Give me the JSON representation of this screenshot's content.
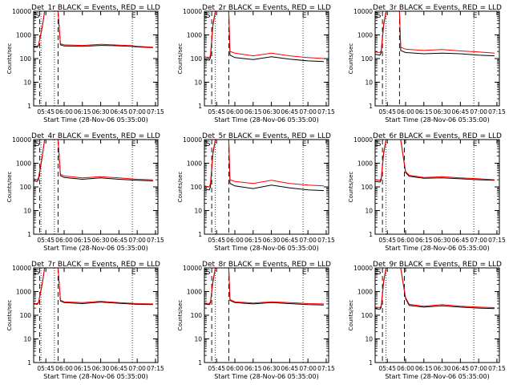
{
  "chart_data": [
    {
      "type": "line",
      "title": "Det_1r BLACK = Events, RED = LLD",
      "xlabel": "Start Time (28-Nov-06 05:35:00)",
      "ylabel": "Counts/sec",
      "yscale": "log",
      "ylim": [
        1,
        10000
      ],
      "x_ticks": [
        "05:45",
        "06:00",
        "06:15",
        "06:30",
        "06:45",
        "07:00",
        "07:15"
      ],
      "y_ticks": [
        "1",
        "10",
        "100",
        "1000",
        "10000"
      ],
      "markers": [
        {
          "x": "05:36",
          "label": "E"
        },
        {
          "x": "05:38",
          "label": "S"
        },
        {
          "x": "06:57",
          "label": "E"
        }
      ],
      "dotted_lines": [
        "05:41",
        "05:52",
        "06:56"
      ],
      "dashed_lines": [
        "05:40",
        "05:55"
      ],
      "series": [
        {
          "color": "#000000",
          "x": [
            "05:35",
            "05:38",
            "05:39",
            "05:42",
            "05:44",
            "05:55",
            "05:57",
            "06:00",
            "06:15",
            "06:30",
            "06:40",
            "06:55",
            "07:00",
            "07:13"
          ],
          "y": [
            320,
            300,
            360,
            2000,
            10000,
            10000,
            380,
            340,
            330,
            360,
            350,
            330,
            310,
            290
          ]
        },
        {
          "color": "#ff0000",
          "x": [
            "05:35",
            "05:38",
            "05:39",
            "05:42",
            "05:44",
            "05:55",
            "05:57",
            "06:00",
            "06:15",
            "06:30",
            "06:40",
            "06:55",
            "07:00",
            "07:13"
          ],
          "y": [
            340,
            330,
            380,
            2200,
            10000,
            10000,
            420,
            380,
            360,
            400,
            380,
            350,
            330,
            300
          ]
        }
      ]
    },
    {
      "type": "line",
      "title": "Det_2r BLACK = Events, RED = LLD",
      "xlabel": "Start Time (28-Nov-06 05:35:00)",
      "ylabel": "Counts/sec",
      "yscale": "log",
      "ylim": [
        1,
        10000
      ],
      "x_ticks": [
        "05:45",
        "06:00",
        "06:15",
        "06:30",
        "06:45",
        "07:00",
        "07:15"
      ],
      "y_ticks": [
        "1",
        "10",
        "100",
        "1000",
        "10000"
      ],
      "markers": [
        {
          "x": "05:36",
          "label": "E"
        },
        {
          "x": "05:38",
          "label": "S"
        },
        {
          "x": "06:57",
          "label": "E"
        }
      ],
      "dotted_lines": [
        "05:44",
        "06:56"
      ],
      "dashed_lines": [
        "05:41",
        "05:55"
      ],
      "series": [
        {
          "color": "#000000",
          "x": [
            "05:35",
            "05:39",
            "05:40",
            "05:42",
            "05:44",
            "05:55",
            "05:56",
            "06:00",
            "06:15",
            "06:30",
            "06:45",
            "07:00",
            "07:13"
          ],
          "y": [
            90,
            85,
            110,
            2500,
            10000,
            10000,
            140,
            110,
            90,
            120,
            95,
            80,
            75
          ]
        },
        {
          "color": "#ff0000",
          "x": [
            "05:35",
            "05:39",
            "05:40",
            "05:42",
            "05:44",
            "05:55",
            "05:56",
            "06:00",
            "06:15",
            "06:30",
            "06:45",
            "07:00",
            "07:13"
          ],
          "y": [
            120,
            110,
            140,
            3000,
            10000,
            10000,
            200,
            170,
            130,
            170,
            130,
            110,
            100
          ]
        }
      ]
    },
    {
      "type": "line",
      "title": "Det_3r BLACK = Events, RED = LLD",
      "xlabel": "Start Time (28-Nov-06 05:35:00)",
      "ylabel": "Counts/sec",
      "yscale": "log",
      "ylim": [
        1,
        10000
      ],
      "x_ticks": [
        "05:45",
        "06:00",
        "06:15",
        "06:30",
        "06:45",
        "07:00",
        "07:15"
      ],
      "y_ticks": [
        "1",
        "10",
        "100",
        "1000",
        "10000"
      ],
      "markers": [
        {
          "x": "05:36",
          "label": "E"
        },
        {
          "x": "05:38",
          "label": "S"
        },
        {
          "x": "06:57",
          "label": "E"
        }
      ],
      "dotted_lines": [
        "05:44",
        "06:56"
      ],
      "dashed_lines": [
        "05:41",
        "05:55"
      ],
      "series": [
        {
          "color": "#000000",
          "x": [
            "05:35",
            "05:39",
            "05:40",
            "05:42",
            "05:44",
            "05:55",
            "05:56",
            "06:00",
            "06:15",
            "06:30",
            "06:45",
            "07:00",
            "07:13"
          ],
          "y": [
            150,
            140,
            180,
            2500,
            10000,
            10000,
            220,
            180,
            160,
            170,
            160,
            140,
            130
          ]
        },
        {
          "color": "#ff0000",
          "x": [
            "05:35",
            "05:39",
            "05:40",
            "05:42",
            "05:44",
            "05:55",
            "05:56",
            "06:00",
            "06:15",
            "06:30",
            "06:45",
            "07:00",
            "07:13"
          ],
          "y": [
            190,
            180,
            220,
            3000,
            10000,
            10000,
            300,
            250,
            220,
            240,
            210,
            190,
            170
          ]
        }
      ]
    },
    {
      "type": "line",
      "title": "Det_4r BLACK = Events, RED = LLD",
      "xlabel": "Start Time (28-Nov-06 05:35:00)",
      "ylabel": "Counts/sec",
      "yscale": "log",
      "ylim": [
        1,
        10000
      ],
      "x_ticks": [
        "05:45",
        "06:00",
        "06:15",
        "06:30",
        "06:45",
        "07:00",
        "07:15"
      ],
      "y_ticks": [
        "1",
        "10",
        "100",
        "1000",
        "10000"
      ],
      "markers": [
        {
          "x": "05:36",
          "label": "E"
        },
        {
          "x": "05:38",
          "label": "S"
        },
        {
          "x": "06:57",
          "label": "E"
        }
      ],
      "dotted_lines": [
        "05:41",
        "05:52",
        "06:56"
      ],
      "dashed_lines": [
        "05:40",
        "05:55"
      ],
      "series": [
        {
          "color": "#000000",
          "x": [
            "05:35",
            "05:38",
            "05:39",
            "05:42",
            "05:44",
            "05:55",
            "05:57",
            "06:00",
            "06:15",
            "06:30",
            "06:45",
            "07:00",
            "07:13"
          ],
          "y": [
            180,
            170,
            210,
            1800,
            10000,
            10000,
            300,
            250,
            210,
            240,
            210,
            190,
            180
          ]
        },
        {
          "color": "#ff0000",
          "x": [
            "05:35",
            "05:38",
            "05:39",
            "05:42",
            "05:44",
            "05:55",
            "05:57",
            "06:00",
            "06:15",
            "06:30",
            "06:45",
            "07:00",
            "07:13"
          ],
          "y": [
            220,
            200,
            250,
            2000,
            10000,
            10000,
            340,
            290,
            240,
            270,
            240,
            210,
            200
          ]
        }
      ]
    },
    {
      "type": "line",
      "title": "Det_5r BLACK = Events, RED = LLD",
      "xlabel": "Start Time (28-Nov-06 05:35:00)",
      "ylabel": "Counts/sec",
      "yscale": "log",
      "ylim": [
        1,
        10000
      ],
      "x_ticks": [
        "05:45",
        "06:00",
        "06:15",
        "06:30",
        "06:45",
        "07:00",
        "07:15"
      ],
      "y_ticks": [
        "1",
        "10",
        "100",
        "1000",
        "10000"
      ],
      "markers": [
        {
          "x": "05:36",
          "label": "E"
        },
        {
          "x": "05:38",
          "label": "S"
        },
        {
          "x": "06:57",
          "label": "E"
        }
      ],
      "dotted_lines": [
        "05:44",
        "06:56"
      ],
      "dashed_lines": [
        "05:41",
        "05:55"
      ],
      "series": [
        {
          "color": "#000000",
          "x": [
            "05:35",
            "05:39",
            "05:40",
            "05:42",
            "05:44",
            "05:55",
            "05:56",
            "06:00",
            "06:15",
            "06:30",
            "06:45",
            "07:00",
            "07:13"
          ],
          "y": [
            80,
            75,
            100,
            2500,
            10000,
            10000,
            140,
            110,
            85,
            120,
            90,
            75,
            70
          ]
        },
        {
          "color": "#ff0000",
          "x": [
            "05:35",
            "05:39",
            "05:40",
            "05:42",
            "05:44",
            "05:55",
            "05:56",
            "06:00",
            "06:15",
            "06:30",
            "06:45",
            "07:00",
            "07:13"
          ],
          "y": [
            110,
            100,
            140,
            3000,
            10000,
            10000,
            200,
            170,
            140,
            190,
            140,
            120,
            110
          ]
        }
      ]
    },
    {
      "type": "line",
      "title": "Det_6r BLACK = Events, RED = LLD",
      "xlabel": "Start Time (28-Nov-06 05:35:00)",
      "ylabel": "Counts/sec",
      "yscale": "log",
      "ylim": [
        1,
        10000
      ],
      "x_ticks": [
        "05:45",
        "06:00",
        "06:15",
        "06:30",
        "06:45",
        "07:00",
        "07:15"
      ],
      "y_ticks": [
        "1",
        "10",
        "100",
        "1000",
        "10000"
      ],
      "markers": [
        {
          "x": "05:36",
          "label": "E"
        },
        {
          "x": "05:38",
          "label": "S"
        },
        {
          "x": "06:57",
          "label": "E"
        }
      ],
      "dotted_lines": [
        "05:44",
        "06:56"
      ],
      "dashed_lines": [
        "05:41",
        "05:59"
      ],
      "series": [
        {
          "color": "#000000",
          "x": [
            "05:35",
            "05:39",
            "05:40",
            "05:42",
            "05:44",
            "05:56",
            "06:00",
            "06:03",
            "06:15",
            "06:30",
            "06:45",
            "07:00",
            "07:13"
          ],
          "y": [
            170,
            160,
            200,
            2500,
            10000,
            10000,
            400,
            280,
            230,
            240,
            220,
            200,
            190
          ]
        },
        {
          "color": "#ff0000",
          "x": [
            "05:35",
            "05:39",
            "05:40",
            "05:42",
            "05:44",
            "05:56",
            "06:00",
            "06:03",
            "06:15",
            "06:30",
            "06:45",
            "07:00",
            "07:13"
          ],
          "y": [
            200,
            190,
            230,
            3000,
            10000,
            10000,
            450,
            310,
            250,
            270,
            240,
            220,
            200
          ]
        }
      ]
    },
    {
      "type": "line",
      "title": "Det_7r BLACK = Events, RED = LLD",
      "xlabel": "Start Time (28-Nov-06 05:35:00)",
      "ylabel": "Counts/sec",
      "yscale": "log",
      "ylim": [
        1,
        10000
      ],
      "x_ticks": [
        "05:45",
        "06:00",
        "06:15",
        "06:30",
        "06:45",
        "07:00",
        "07:15"
      ],
      "y_ticks": [
        "1",
        "10",
        "100",
        "1000",
        "10000"
      ],
      "markers": [
        {
          "x": "05:36",
          "label": "E"
        },
        {
          "x": "05:38",
          "label": "S"
        },
        {
          "x": "06:57",
          "label": "E"
        }
      ],
      "dotted_lines": [
        "05:41",
        "05:52",
        "06:56"
      ],
      "dashed_lines": [
        "05:40",
        "05:55"
      ],
      "series": [
        {
          "color": "#000000",
          "x": [
            "05:35",
            "05:38",
            "05:39",
            "05:42",
            "05:44",
            "05:55",
            "05:57",
            "06:00",
            "06:15",
            "06:30",
            "06:45",
            "07:00",
            "07:13"
          ],
          "y": [
            300,
            290,
            340,
            2000,
            10000,
            10000,
            400,
            340,
            310,
            360,
            320,
            290,
            280
          ]
        },
        {
          "color": "#ff0000",
          "x": [
            "05:35",
            "05:38",
            "05:39",
            "05:42",
            "05:44",
            "05:55",
            "05:57",
            "06:00",
            "06:15",
            "06:30",
            "06:45",
            "07:00",
            "07:13"
          ],
          "y": [
            320,
            310,
            360,
            2200,
            10000,
            10000,
            430,
            370,
            340,
            390,
            340,
            310,
            300
          ]
        }
      ]
    },
    {
      "type": "line",
      "title": "Det_8r BLACK = Events, RED = LLD",
      "xlabel": "Start Time (28-Nov-06 05:35:00)",
      "ylabel": "Counts/sec",
      "yscale": "log",
      "ylim": [
        1,
        10000
      ],
      "x_ticks": [
        "05:45",
        "06:00",
        "06:15",
        "06:30",
        "06:45",
        "07:00",
        "07:15"
      ],
      "y_ticks": [
        "1",
        "10",
        "100",
        "1000",
        "10000"
      ],
      "markers": [
        {
          "x": "05:36",
          "label": "E"
        },
        {
          "x": "05:38",
          "label": "S"
        },
        {
          "x": "06:57",
          "label": "E"
        }
      ],
      "dotted_lines": [
        "05:44",
        "06:56"
      ],
      "dashed_lines": [
        "05:41",
        "05:55"
      ],
      "series": [
        {
          "color": "#000000",
          "x": [
            "05:35",
            "05:39",
            "05:40",
            "05:42",
            "05:44",
            "05:55",
            "05:56",
            "06:00",
            "06:15",
            "06:30",
            "06:45",
            "07:00",
            "07:13"
          ],
          "y": [
            300,
            280,
            340,
            2500,
            10000,
            10000,
            420,
            340,
            300,
            340,
            310,
            280,
            270
          ]
        },
        {
          "color": "#ff0000",
          "x": [
            "05:35",
            "05:39",
            "05:40",
            "05:42",
            "05:44",
            "05:55",
            "05:56",
            "06:00",
            "06:15",
            "06:30",
            "06:45",
            "07:00",
            "07:13"
          ],
          "y": [
            330,
            310,
            370,
            3000,
            10000,
            10000,
            460,
            370,
            330,
            370,
            340,
            310,
            300
          ]
        }
      ]
    },
    {
      "type": "line",
      "title": "Det_9r BLACK = Events, RED = LLD",
      "xlabel": "Start Time (28-Nov-06 05:35:00)",
      "ylabel": "Counts/sec",
      "yscale": "log",
      "ylim": [
        1,
        10000
      ],
      "x_ticks": [
        "05:45",
        "06:00",
        "06:15",
        "06:30",
        "06:45",
        "07:00",
        "07:15"
      ],
      "y_ticks": [
        "1",
        "10",
        "100",
        "1000",
        "10000"
      ],
      "markers": [
        {
          "x": "05:36",
          "label": "E"
        },
        {
          "x": "05:38",
          "label": "S"
        },
        {
          "x": "06:57",
          "label": "E"
        }
      ],
      "dotted_lines": [
        "05:44",
        "06:56"
      ],
      "dashed_lines": [
        "05:41",
        "05:59"
      ],
      "series": [
        {
          "color": "#000000",
          "x": [
            "05:35",
            "05:39",
            "05:40",
            "05:42",
            "05:44",
            "05:56",
            "06:00",
            "06:03",
            "06:15",
            "06:30",
            "06:45",
            "07:00",
            "07:13"
          ],
          "y": [
            190,
            180,
            220,
            2500,
            10000,
            10000,
            500,
            260,
            220,
            250,
            220,
            200,
            190
          ]
        },
        {
          "color": "#ff0000",
          "x": [
            "05:35",
            "05:39",
            "05:40",
            "05:42",
            "05:44",
            "05:56",
            "06:00",
            "06:03",
            "06:15",
            "06:30",
            "06:45",
            "07:00",
            "07:13"
          ],
          "y": [
            220,
            210,
            250,
            3000,
            10000,
            10000,
            560,
            290,
            240,
            280,
            240,
            220,
            210
          ]
        }
      ]
    }
  ]
}
